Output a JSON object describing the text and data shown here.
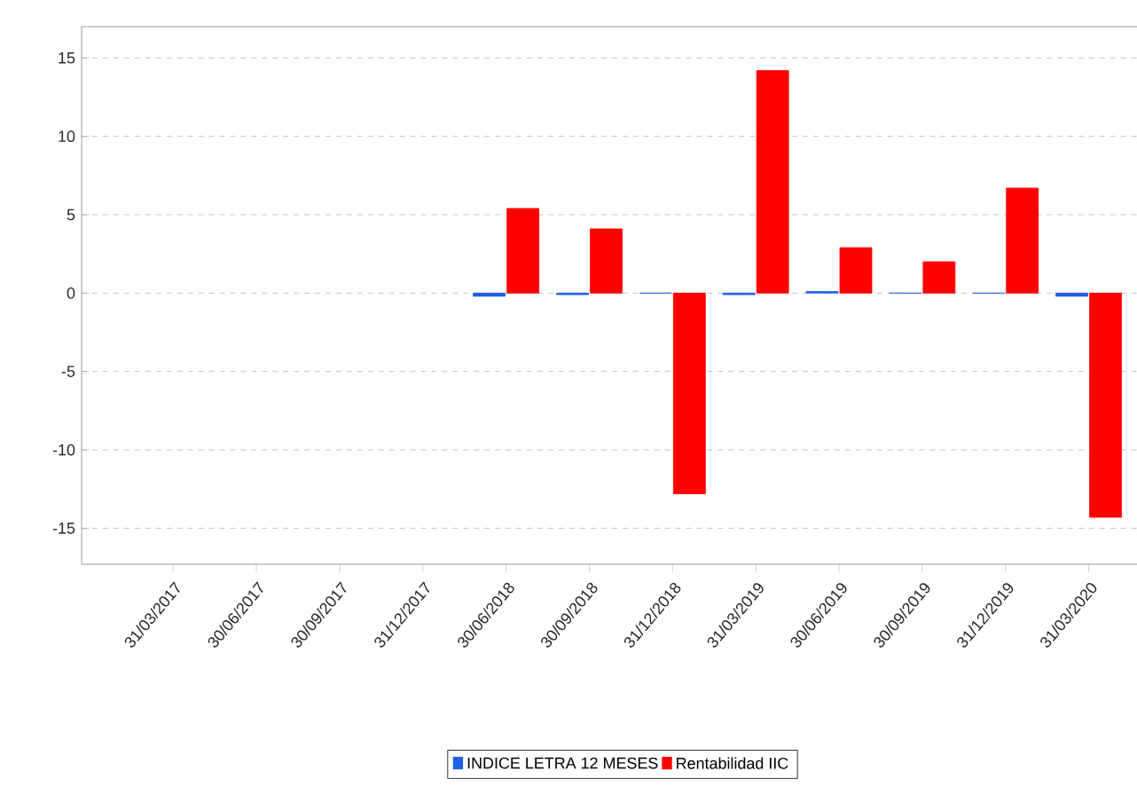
{
  "chart_data": {
    "type": "bar",
    "categories": [
      "31/03/2017",
      "30/06/2017",
      "30/09/2017",
      "31/12/2017",
      "30/06/2018",
      "30/09/2018",
      "31/12/2018",
      "31/03/2019",
      "30/06/2019",
      "30/09/2019",
      "31/12/2019",
      "31/03/2020"
    ],
    "series": [
      {
        "name": "INDICE LETRA 12 MESES",
        "color": "#1f5fe6",
        "values": [
          null,
          null,
          null,
          null,
          -0.2,
          -0.1,
          0,
          -0.1,
          0.1,
          0,
          0,
          -0.2
        ]
      },
      {
        "name": "Rentabilidad IIC",
        "color": "#ff0000",
        "values": [
          null,
          null,
          null,
          null,
          5.4,
          4.1,
          -12.8,
          14.2,
          2.9,
          2.0,
          6.7,
          -14.3
        ]
      }
    ],
    "ylim": [
      -17.3,
      17
    ],
    "yticks": [
      -15,
      -10,
      -5,
      0,
      5,
      10,
      15
    ],
    "grid": "y",
    "legend": "bottom"
  }
}
